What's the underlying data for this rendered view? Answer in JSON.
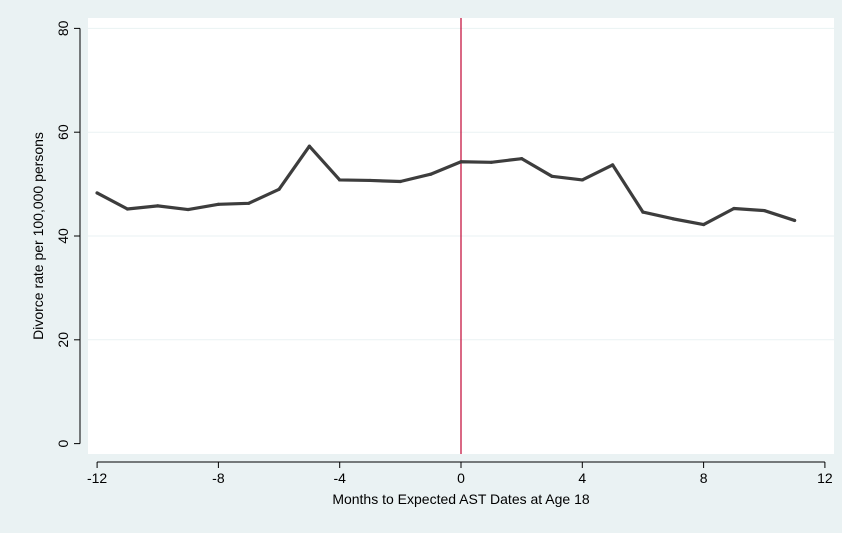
{
  "chart_data": {
    "type": "line",
    "title": "",
    "xlabel": "Months to Expected AST Dates at Age 18",
    "ylabel": "Divorce rate per 100,000 persons",
    "xlim": [
      -12.3,
      12.3
    ],
    "ylim": [
      -2,
      82
    ],
    "x_ticks": [
      -12,
      -8,
      -4,
      0,
      4,
      8,
      12
    ],
    "y_ticks": [
      0,
      20,
      40,
      60,
      80
    ],
    "grid": "horizontal",
    "reference_line_x": 0,
    "series": [
      {
        "x": [
          -12,
          -11,
          -10,
          -9,
          -8,
          -7,
          -6,
          -5,
          -4,
          -3,
          -2,
          -1,
          0,
          1,
          2,
          3,
          4,
          5,
          6,
          7,
          8,
          9,
          10,
          11
        ],
        "values": [
          48.3,
          45.2,
          45.8,
          45.1,
          46.1,
          46.3,
          49.0,
          57.3,
          50.8,
          50.7,
          50.5,
          51.9,
          54.3,
          54.2,
          54.9,
          51.5,
          50.8,
          53.7,
          44.6,
          43.3,
          42.2,
          45.3,
          44.9,
          43.0
        ]
      }
    ],
    "colors": {
      "outer_background": "#eaf2f3",
      "plot_background": "#ffffff",
      "line": "#3d3d3d",
      "gridline": "#eaf2f3",
      "reference_line": "#c10534"
    }
  }
}
